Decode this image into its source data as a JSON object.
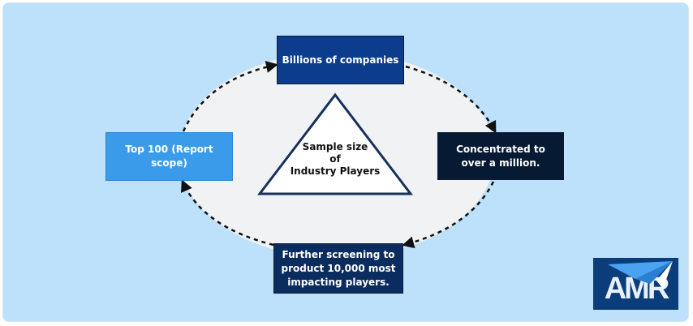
{
  "nodes": {
    "top": "Billions of companies",
    "right": "Concentrated to over a million.",
    "bottom": "Further screening to product 10,000 most impacting players.",
    "left": "Top 100 (Report scope)"
  },
  "center": {
    "line1": "Sample size",
    "line2": "of",
    "line3": "Industry Players"
  },
  "logo": {
    "text": "AMR"
  },
  "colors": {
    "background": "#bde0fb",
    "ellipse": "#f0f2f4",
    "top_box": "#0b3d8c",
    "right_box": "#071a33",
    "bottom_box": "#0b2c5e",
    "left_box": "#3a9bea"
  }
}
